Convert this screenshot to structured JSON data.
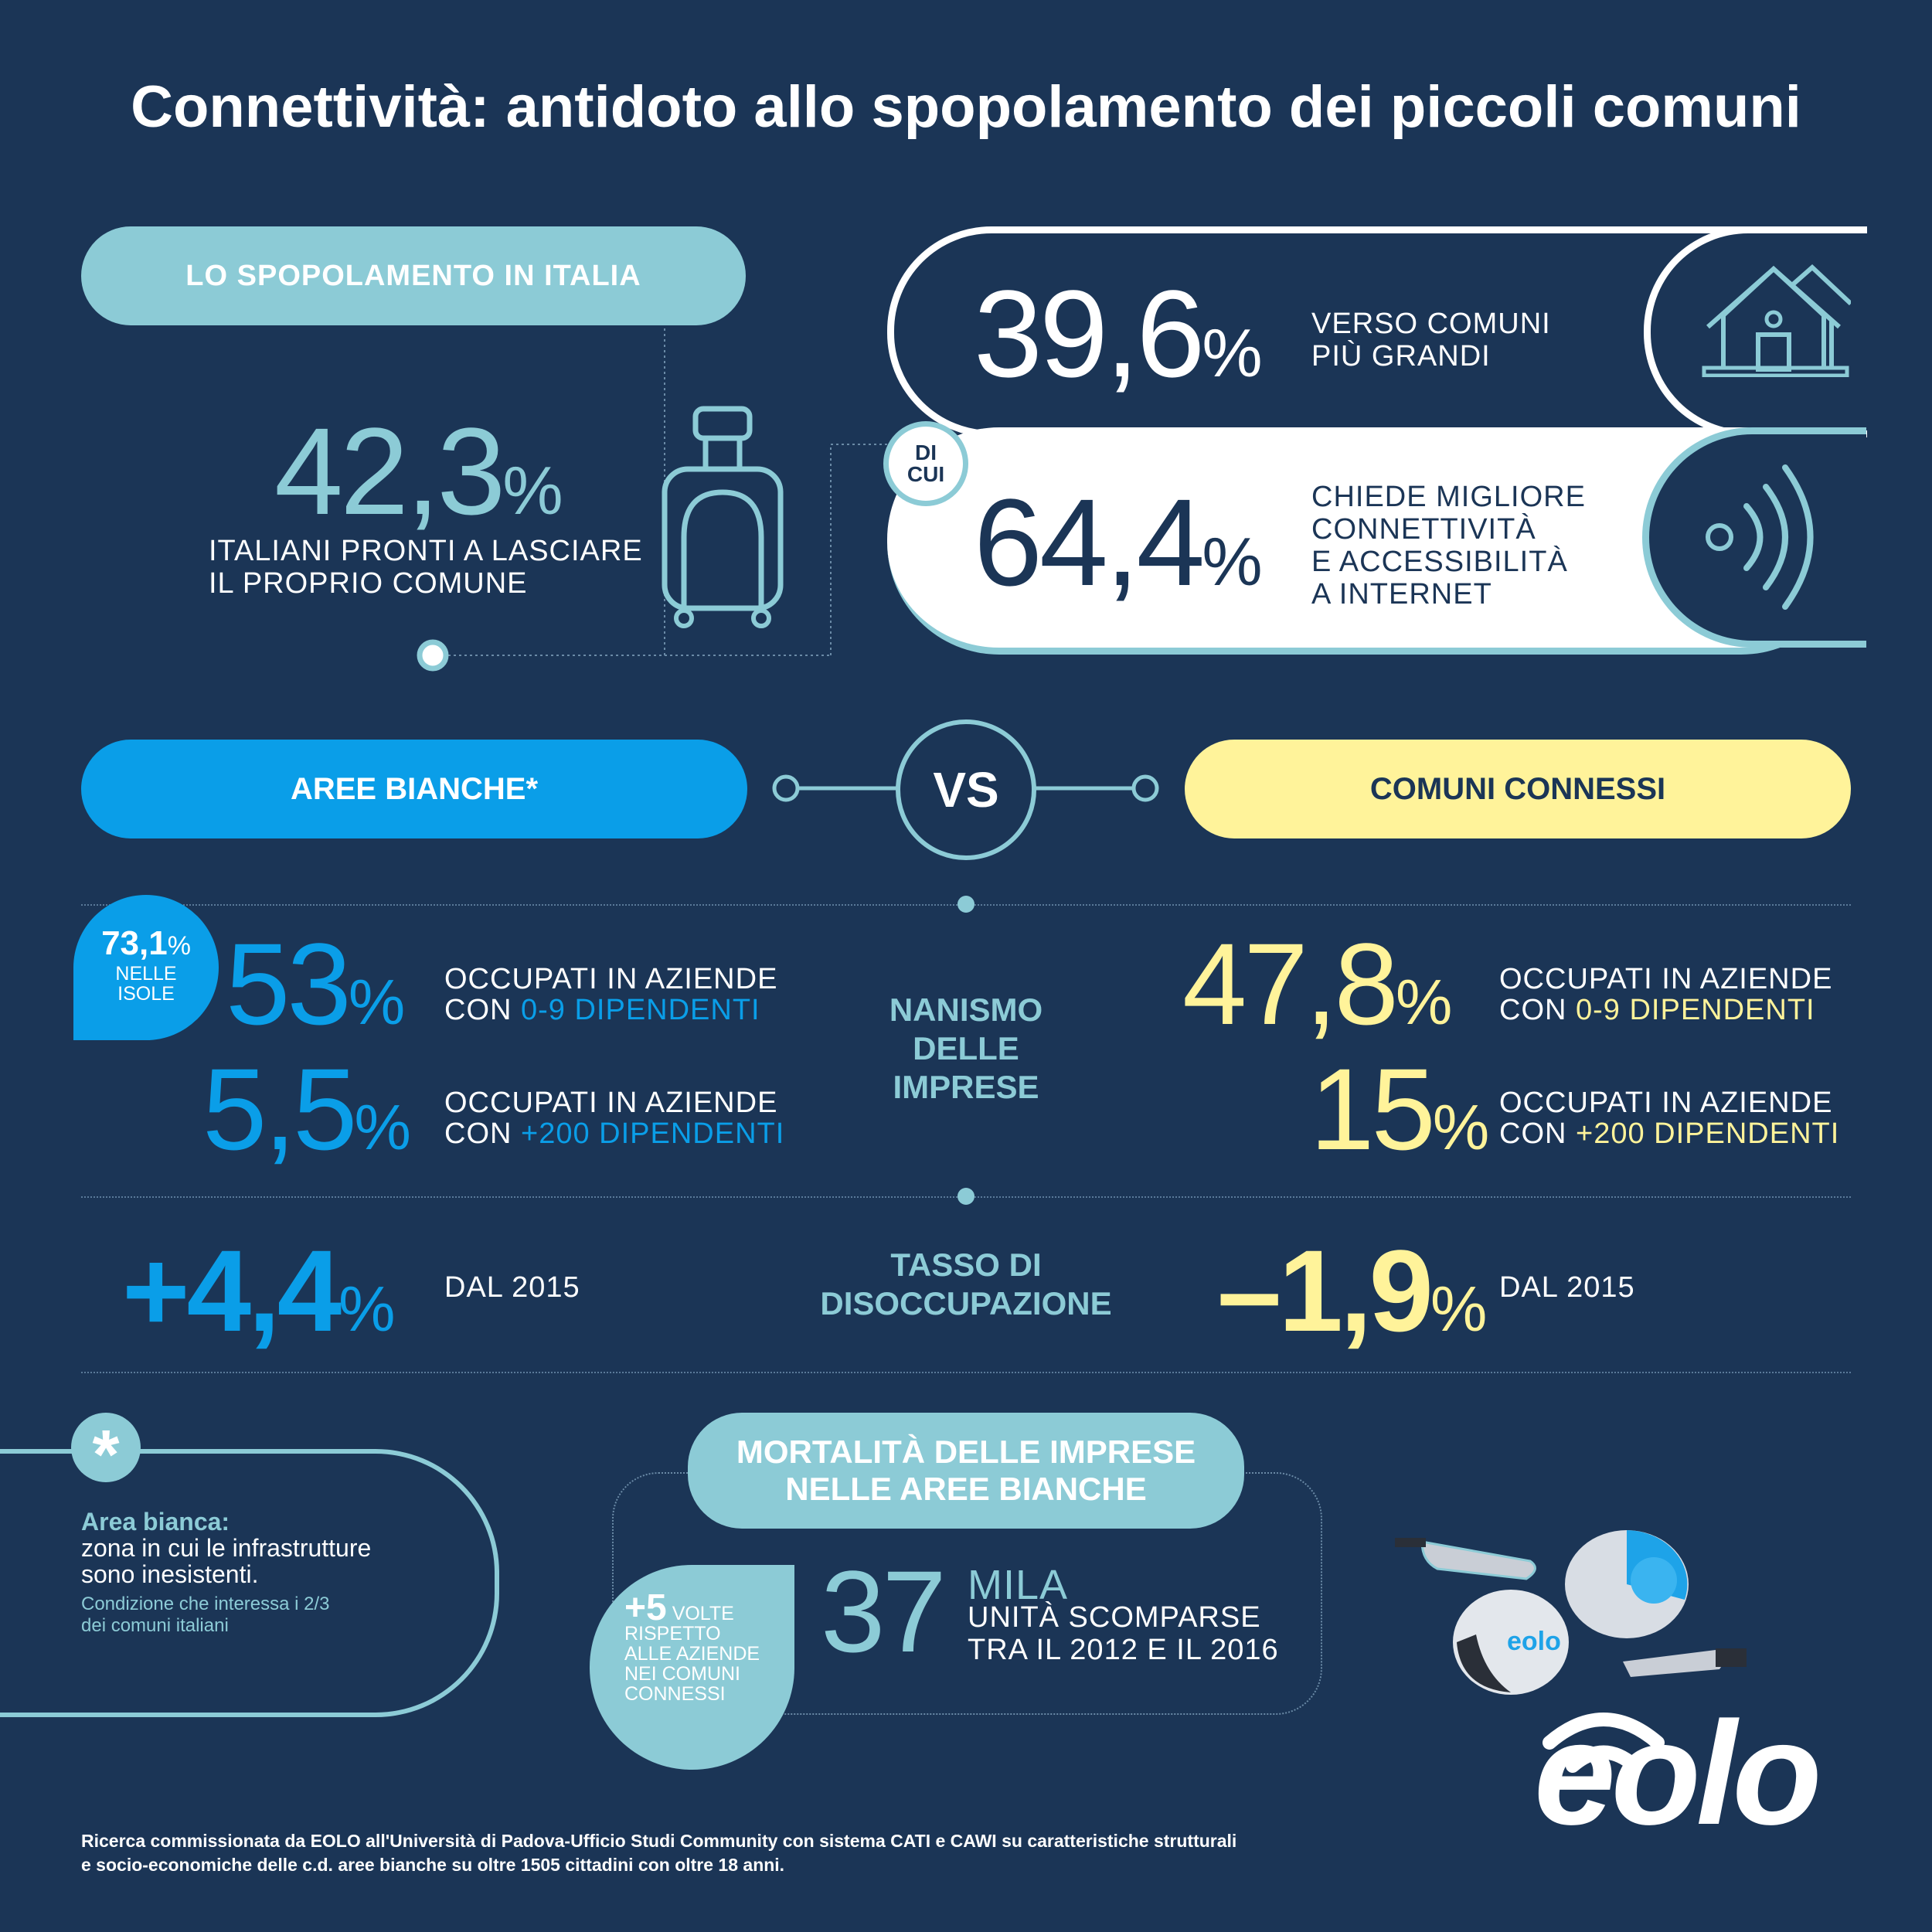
{
  "title": "Connettività: antidoto allo spopolamento dei piccoli comuni",
  "spopolamento": {
    "header": "LO SPOPOLAMENTO IN ITALIA",
    "value": "42,3",
    "pct": "%",
    "caption_1": "ITALIANI PRONTI A LASCIARE",
    "caption_2": "IL PROPRIO COMUNE",
    "larger_value": "39,6",
    "larger_caption_1": "VERSO COMUNI",
    "larger_caption_2": "PIÙ GRANDI",
    "dicui_1": "DI",
    "dicui_2": "CUI",
    "conn_value": "64,4",
    "conn_caption_1": "CHIEDE MIGLIORE",
    "conn_caption_2": "CONNETTIVITÀ",
    "conn_caption_3": "E ACCESSIBILITÀ",
    "conn_caption_4": "A INTERNET"
  },
  "compare": {
    "left_label": "AREE BIANCHE*",
    "vs": "VS",
    "right_label": "COMUNI CONNESSI",
    "center_1_a": "NANISMO",
    "center_1_b": "DELLE",
    "center_1_c": "IMPRESE",
    "center_2_a": "TASSO DI",
    "center_2_b": "DISOCCUPAZIONE",
    "badge_value": "73,1",
    "badge_pct": "%",
    "badge_1": "NELLE",
    "badge_2": "ISOLE",
    "left_small_value": "53",
    "left_large_value": "5,5",
    "right_small_value": "47,8",
    "right_large_value": "15",
    "occ": "OCCUPATI IN AZIENDE",
    "con": "CON ",
    "small_range": "0-9 DIPENDENTI",
    "large_range": "+200 DIPENDENTI",
    "left_unemp": "+4,4",
    "right_unemp": "–1,9",
    "since": "DAL 2015",
    "pct": "%"
  },
  "note": {
    "asterisk": "*",
    "term": "Area bianca:",
    "def_1": "zona in cui le infrastrutture",
    "def_2": "sono inesistenti.",
    "sub_1": "Condizione che interessa i 2/3",
    "sub_2": "dei comuni italiani"
  },
  "mortalita": {
    "header_1": "MORTALITÀ DELLE IMPRESE",
    "header_2": "NELLE AREE BIANCHE",
    "value": "37",
    "unit": "MILA",
    "caption_1": "UNITÀ SCOMPARSE",
    "caption_2": "TRA IL 2012 E IL 2016",
    "badge_value": "+5",
    "badge_unit": "VOLTE",
    "badge_1": "RISPETTO",
    "badge_2": "ALLE AZIENDE",
    "badge_3": "NEI COMUNI",
    "badge_4": "CONNESSI"
  },
  "logo": "eolo",
  "footer_1": "Ricerca commissionata da EOLO all'Università di Padova-Ufficio Studi Community con sistema CATI e CAWI su caratteristiche strutturali",
  "footer_2": "e socio-economiche delle c.d. aree bianche su oltre 1505 cittadini con oltre 18 anni.",
  "colors": {
    "background": "#1b3556",
    "teal": "#8ccbd6",
    "blue": "#0a9ee8",
    "yellow": "#fff39a",
    "navy": "#1b3556"
  }
}
